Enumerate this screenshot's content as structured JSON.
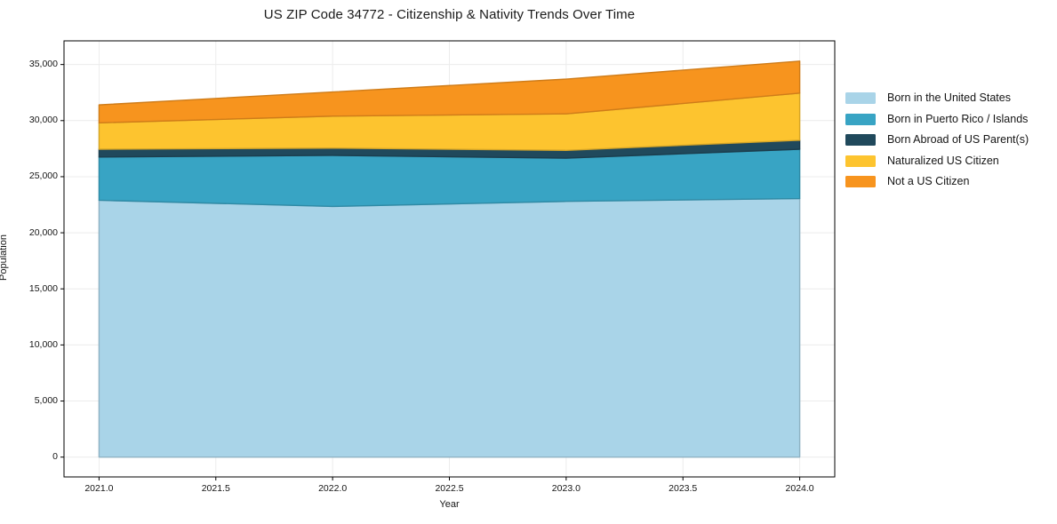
{
  "title": "US ZIP Code 34772 - Citizenship & Nativity Trends Over Time",
  "chart_data": {
    "type": "area",
    "stacked": true,
    "title": "US ZIP Code 34772 - Citizenship & Nativity Trends Over Time",
    "xlabel": "Year",
    "ylabel": "Population",
    "x": [
      2021,
      2022,
      2023,
      2024
    ],
    "series": [
      {
        "name": "Born in the United States",
        "color": "#A9D4E8",
        "values": [
          22900,
          22350,
          22800,
          23050
        ]
      },
      {
        "name": "Born in Puerto Rico / Islands",
        "color": "#38A4C4",
        "values": [
          3850,
          4550,
          3850,
          4400
        ]
      },
      {
        "name": "Born Abroad of US Parent(s)",
        "color": "#20495C",
        "values": [
          700,
          650,
          700,
          800
        ]
      },
      {
        "name": "Naturalized US Citizen",
        "color": "#FDC42F",
        "values": [
          2350,
          2850,
          3250,
          4200
        ]
      },
      {
        "name": "Not a US Citizen",
        "color": "#F7941E",
        "values": [
          1600,
          2150,
          3100,
          2850
        ]
      }
    ],
    "stack_totals": [
      31400,
      32550,
      33700,
      35300
    ],
    "xlim": [
      2020.85,
      2024.15
    ],
    "ylim": [
      -1767,
      37110
    ],
    "x_ticks": {
      "values": [
        2021.0,
        2021.5,
        2022.0,
        2022.5,
        2023.0,
        2023.5,
        2024.0
      ],
      "labels": [
        "2021.0",
        "2021.5",
        "2022.0",
        "2022.5",
        "2023.0",
        "2023.5",
        "2024.0"
      ]
    },
    "y_ticks": {
      "values": [
        0,
        5000,
        10000,
        15000,
        20000,
        25000,
        30000,
        35000
      ],
      "labels": [
        "0",
        "5,000",
        "10,000",
        "15,000",
        "20,000",
        "25,000",
        "30,000",
        "35,000"
      ]
    },
    "grid": true,
    "legend_position": "right-outside"
  },
  "colors": {
    "background": "#ffffff",
    "grid": "#ececec",
    "spine": "#000000",
    "text": "#141414"
  }
}
